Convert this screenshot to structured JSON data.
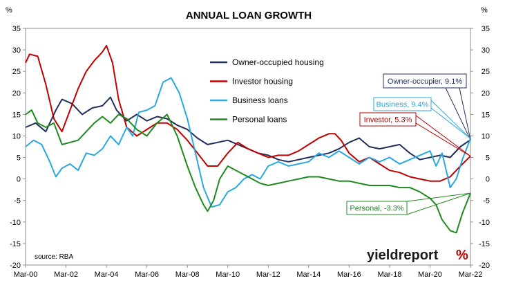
{
  "chart_data": {
    "type": "line",
    "title": "ANNUAL LOAN GROWTH",
    "y_unit_left": "%",
    "y_unit_right": "%",
    "ylim": [
      -20,
      35
    ],
    "y_ticks": [
      -20,
      -15,
      -10,
      -5,
      0,
      5,
      10,
      15,
      20,
      25,
      30,
      35
    ],
    "x_tick_labels": [
      "Mar-00",
      "Mar-02",
      "Mar-04",
      "Mar-06",
      "Mar-08",
      "Mar-10",
      "Mar-12",
      "Mar-14",
      "Mar-16",
      "Mar-18",
      "Mar-20",
      "Mar-22"
    ],
    "grid": false,
    "legend_position": "top-center",
    "source": "source: RBA",
    "logo": {
      "main": "yieldreport",
      "suffix": "%"
    },
    "series": [
      {
        "name": "Owner-occupied housing",
        "color": "#1f2e5c",
        "x": [
          2000.0,
          2000.5,
          2001.0,
          2001.5,
          2001.8,
          2002.3,
          2002.8,
          2003.3,
          2003.8,
          2004.2,
          2004.5,
          2005.0,
          2005.5,
          2006.0,
          2006.5,
          2007.0,
          2007.5,
          2008.0,
          2008.5,
          2009.0,
          2009.5,
          2010.0,
          2010.5,
          2011.0,
          2011.5,
          2012.0,
          2012.5,
          2013.0,
          2013.5,
          2014.0,
          2014.5,
          2015.0,
          2015.5,
          2016.0,
          2016.5,
          2017.0,
          2017.5,
          2018.0,
          2018.5,
          2019.0,
          2019.5,
          2020.0,
          2020.5,
          2021.0,
          2021.5,
          2022.0
        ],
        "y": [
          12.0,
          13.0,
          11.0,
          16.0,
          18.5,
          17.5,
          15.0,
          16.5,
          17.0,
          19.0,
          16.0,
          13.5,
          15.0,
          13.5,
          14.5,
          14.0,
          12.5,
          11.5,
          9.5,
          8.0,
          8.5,
          9.0,
          8.0,
          7.0,
          6.0,
          5.5,
          4.5,
          4.0,
          4.5,
          5.0,
          5.5,
          6.0,
          7.0,
          8.5,
          9.5,
          7.5,
          7.0,
          7.5,
          8.0,
          6.0,
          4.5,
          5.0,
          5.5,
          5.0,
          7.5,
          9.1
        ]
      },
      {
        "name": "Investor housing",
        "color": "#c00000",
        "x": [
          2000.0,
          2000.2,
          2000.6,
          2001.0,
          2001.4,
          2001.8,
          2002.2,
          2002.6,
          2003.0,
          2003.4,
          2003.8,
          2004.0,
          2004.3,
          2004.6,
          2005.0,
          2005.5,
          2006.0,
          2006.5,
          2007.0,
          2007.5,
          2008.0,
          2008.5,
          2009.0,
          2009.5,
          2010.0,
          2010.5,
          2011.0,
          2011.5,
          2012.0,
          2012.5,
          2013.0,
          2013.5,
          2014.0,
          2014.5,
          2015.0,
          2015.3,
          2015.6,
          2016.0,
          2016.5,
          2017.0,
          2017.5,
          2018.0,
          2018.5,
          2019.0,
          2019.5,
          2020.0,
          2020.5,
          2021.0,
          2021.5,
          2022.0
        ],
        "y": [
          27.0,
          29.0,
          28.5,
          22.0,
          14.0,
          11.0,
          16.0,
          21.0,
          25.0,
          27.5,
          29.5,
          31.0,
          27.0,
          18.5,
          12.0,
          10.0,
          11.5,
          13.0,
          13.0,
          11.5,
          9.0,
          6.0,
          3.0,
          3.0,
          6.0,
          8.5,
          7.0,
          6.0,
          5.0,
          5.5,
          5.5,
          6.5,
          8.0,
          9.5,
          10.5,
          10.5,
          9.0,
          6.0,
          4.0,
          5.0,
          3.5,
          2.0,
          1.5,
          0.5,
          0.0,
          -0.5,
          -0.5,
          0.5,
          3.0,
          5.3
        ]
      },
      {
        "name": "Business loans",
        "color": "#29a8e0",
        "x": [
          2000.0,
          2000.4,
          2000.8,
          2001.2,
          2001.5,
          2001.8,
          2002.2,
          2002.6,
          2003.0,
          2003.4,
          2003.8,
          2004.2,
          2004.6,
          2005.0,
          2005.3,
          2005.6,
          2006.0,
          2006.4,
          2006.8,
          2007.2,
          2007.6,
          2008.0,
          2008.4,
          2008.8,
          2009.2,
          2009.6,
          2010.0,
          2010.4,
          2010.8,
          2011.2,
          2011.6,
          2012.0,
          2012.5,
          2013.0,
          2013.5,
          2014.0,
          2014.5,
          2015.0,
          2015.5,
          2016.0,
          2016.5,
          2017.0,
          2017.5,
          2018.0,
          2018.5,
          2019.0,
          2019.5,
          2020.0,
          2020.3,
          2020.6,
          2021.0,
          2021.3,
          2021.6,
          2022.0
        ],
        "y": [
          7.5,
          9.0,
          8.0,
          4.0,
          0.5,
          2.5,
          3.5,
          2.0,
          6.0,
          5.5,
          7.0,
          10.0,
          8.0,
          12.0,
          10.0,
          15.5,
          16.0,
          17.0,
          22.5,
          23.5,
          20.0,
          14.0,
          6.0,
          -2.0,
          -6.5,
          -6.0,
          -3.0,
          -2.0,
          0.0,
          1.0,
          0.0,
          3.0,
          4.0,
          3.0,
          3.5,
          4.0,
          6.0,
          5.0,
          6.5,
          5.0,
          3.5,
          5.0,
          4.0,
          5.0,
          3.5,
          4.5,
          5.5,
          6.5,
          3.0,
          6.0,
          -2.0,
          0.0,
          4.5,
          9.4
        ]
      },
      {
        "name": "Personal loans",
        "color": "#1e8a1e",
        "x": [
          2000.0,
          2000.3,
          2000.6,
          2001.0,
          2001.4,
          2001.8,
          2002.2,
          2002.6,
          2003.0,
          2003.4,
          2003.8,
          2004.2,
          2004.6,
          2005.0,
          2005.5,
          2006.0,
          2006.5,
          2007.0,
          2007.5,
          2008.0,
          2008.4,
          2008.8,
          2009.0,
          2009.3,
          2009.6,
          2010.0,
          2010.4,
          2010.8,
          2011.2,
          2011.6,
          2012.0,
          2012.5,
          2013.0,
          2013.5,
          2014.0,
          2014.5,
          2015.0,
          2015.5,
          2016.0,
          2016.5,
          2017.0,
          2017.5,
          2018.0,
          2018.5,
          2019.0,
          2019.5,
          2020.0,
          2020.3,
          2020.6,
          2021.0,
          2021.3,
          2021.6,
          2022.0
        ],
        "y": [
          15.0,
          16.0,
          13.0,
          12.0,
          13.0,
          8.0,
          8.5,
          9.0,
          11.0,
          13.0,
          14.5,
          13.0,
          15.0,
          14.0,
          11.5,
          10.0,
          13.0,
          15.0,
          10.0,
          3.0,
          -2.0,
          -6.0,
          -7.5,
          -5.0,
          0.0,
          3.0,
          2.0,
          1.0,
          0.0,
          -1.0,
          -1.5,
          -1.0,
          -0.5,
          0.0,
          0.5,
          0.5,
          0.0,
          -0.5,
          -0.5,
          -1.0,
          -1.5,
          -1.5,
          -1.5,
          -2.0,
          -2.0,
          -3.0,
          -4.5,
          -6.0,
          -9.5,
          -12.0,
          -12.5,
          -8.0,
          -3.3
        ]
      }
    ],
    "annotations": [
      {
        "label": "Owner-occupier, 9.1%",
        "series": "Owner-occupied housing",
        "x": 2022.0,
        "y": 9.1,
        "color": "#1f2e5c"
      },
      {
        "label": "Business, 9.4%",
        "series": "Business loans",
        "x": 2022.0,
        "y": 9.4,
        "color": "#29a8e0"
      },
      {
        "label": "Investor, 5.3%",
        "series": "Investor housing",
        "x": 2022.0,
        "y": 5.3,
        "color": "#c00000"
      },
      {
        "label": "Personal, -3.3%",
        "series": "Personal loans",
        "x": 2022.0,
        "y": -3.3,
        "color": "#1e8a1e"
      }
    ],
    "axis_color": "#8c8c8c",
    "logo_accent": "#c00000"
  }
}
